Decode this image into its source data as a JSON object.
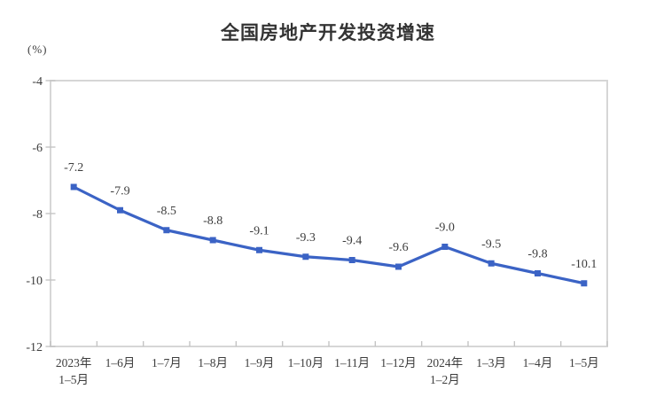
{
  "page": {
    "title": "全国房地产开发投资增速",
    "unit_label": "(%)"
  },
  "chart_data": {
    "type": "line",
    "title": "全国房地产开发投资增速",
    "ylabel": "(%)",
    "xlabel": "",
    "categories": [
      [
        "2023年",
        "1–5月"
      ],
      [
        "1–6月"
      ],
      [
        "1–7月"
      ],
      [
        "1–8月"
      ],
      [
        "1–9月"
      ],
      [
        "1–10月"
      ],
      [
        "1–11月"
      ],
      [
        "1–12月"
      ],
      [
        "2024年",
        "1–2月"
      ],
      [
        "1–3月"
      ],
      [
        "1–4月"
      ],
      [
        "1–5月"
      ]
    ],
    "values": [
      -7.2,
      -7.9,
      -8.5,
      -8.8,
      -9.1,
      -9.3,
      -9.4,
      -9.6,
      -9.0,
      -9.5,
      -9.8,
      -10.1
    ],
    "data_labels": [
      "-7.2",
      "-7.9",
      "-8.5",
      "-8.8",
      "-9.1",
      "-9.3",
      "-9.4",
      "-9.6",
      "-9.0",
      "-9.5",
      "-9.8",
      "-10.1"
    ],
    "ylim": [
      -12,
      -4
    ],
    "yticks": [
      -4,
      -6,
      -8,
      -10,
      -12
    ],
    "grid": false,
    "legend": "none",
    "marker": "square",
    "colors": {
      "line": "#3B63C5",
      "marker": "#3B63C5",
      "label_text": "#3d3d3d",
      "axis_text": "#3d3d3d",
      "title_text": "#333333",
      "plot_border": "#D6D6D6",
      "tick": "#C4C4C4",
      "background": "#FFFFFF"
    }
  }
}
